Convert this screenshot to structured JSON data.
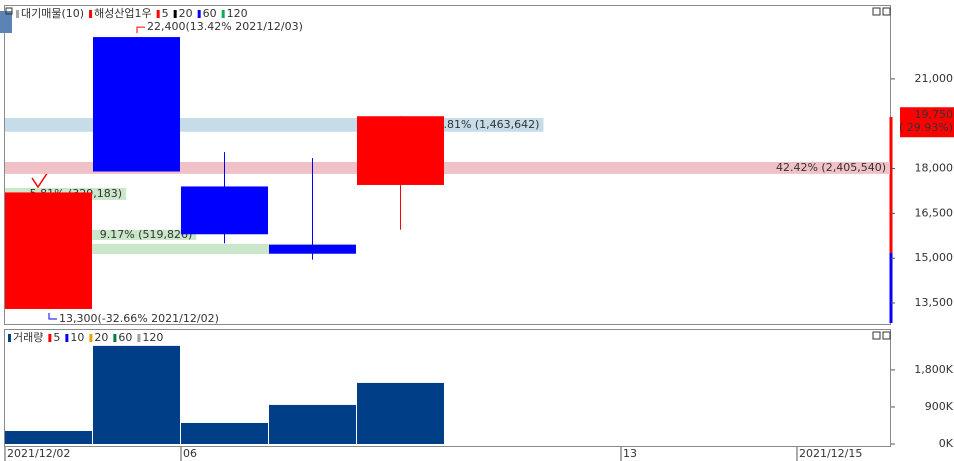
{
  "chart_data": [
    {
      "type": "candlestick",
      "legend": [
        {
          "name": "대기매물(10)",
          "color": "#a8a8a8"
        },
        {
          "name": "해성산업1우",
          "color": "#ff0000"
        },
        {
          "name": "5",
          "color": "#ff0000"
        },
        {
          "name": "20",
          "color": "#000000"
        },
        {
          "name": "60",
          "color": "#0000ff"
        },
        {
          "name": "120",
          "color": "#00b050"
        }
      ],
      "x": [
        0,
        1,
        2,
        3,
        4
      ],
      "xlim": [
        0,
        10.057
      ],
      "open": [
        13300,
        22400,
        17400,
        15450,
        17450
      ],
      "high": [
        17200,
        22400,
        18550,
        18350,
        19750
      ],
      "low": [
        13300,
        17900,
        15500,
        14950,
        15950
      ],
      "close": [
        17200,
        17900,
        15800,
        15150,
        19750
      ],
      "up_color": "#ff0000",
      "down_color": "#0000ff",
      "ylim": [
        12830,
        23440
      ],
      "yticks": [
        {
          "value": 13500,
          "label": "13,500"
        },
        {
          "value": 15000,
          "label": "15,000"
        },
        {
          "value": 16500,
          "label": "16,500"
        },
        {
          "value": 18000,
          "label": "18,000"
        },
        {
          "value": 21000,
          "label": "21,000"
        }
      ],
      "last_label": "19,750",
      "last_change": "( 29.93%)",
      "annotations": [
        {
          "text": "22,400(13.42% 2021/12/03)",
          "color": "#ff0000"
        },
        {
          "text": "13,300(-32.66% 2021/12/02)",
          "color": "#0000ff"
        }
      ],
      "volume_profile": {
        "low": [
          19230,
          17820,
          16950,
          15610,
          15140
        ],
        "high": [
          19690,
          18220,
          17350,
          15950,
          15480
        ],
        "volumes": [
          1463642,
          2405540,
          329183,
          519826,
          952000
        ],
        "labels": [
          ".81% (1,463,642)",
          "42.42% (2,405,540)",
          "5.81% (329,183)",
          "9.17% (519,826)",
          null
        ],
        "colors": [
          "#c6dde9",
          "#f0c2c7",
          "#cbe7ca",
          "#cbe7ca",
          "#cbe7ca"
        ]
      }
    },
    {
      "type": "bar",
      "legend": [
        {
          "name": "거래량",
          "color": "#003f87"
        },
        {
          "name": "5",
          "color": "#ff0000"
        },
        {
          "name": "10",
          "color": "#0000ff"
        },
        {
          "name": "20",
          "color": "#f0a000"
        },
        {
          "name": "60",
          "color": "#008040"
        },
        {
          "name": "120",
          "color": "#a0a0a0"
        }
      ],
      "x": [
        0,
        1,
        2,
        3,
        4
      ],
      "xlim": [
        0,
        10.057
      ],
      "xticks": [
        {
          "value": 0,
          "label": "2021/12/02"
        },
        {
          "value": 2,
          "label": "06"
        },
        {
          "value": 7,
          "label": "13"
        },
        {
          "value": 9,
          "label": "2021/12/15"
        }
      ],
      "values": [
        316000,
        2384000,
        511000,
        949000,
        1484000
      ],
      "color": "#003f87",
      "ylim": [
        0,
        2770000
      ],
      "yticks": [
        {
          "value": 0,
          "label": "0K"
        },
        {
          "value": 900000,
          "label": "900K"
        },
        {
          "value": 1800000,
          "label": "1,800K"
        }
      ]
    }
  ]
}
